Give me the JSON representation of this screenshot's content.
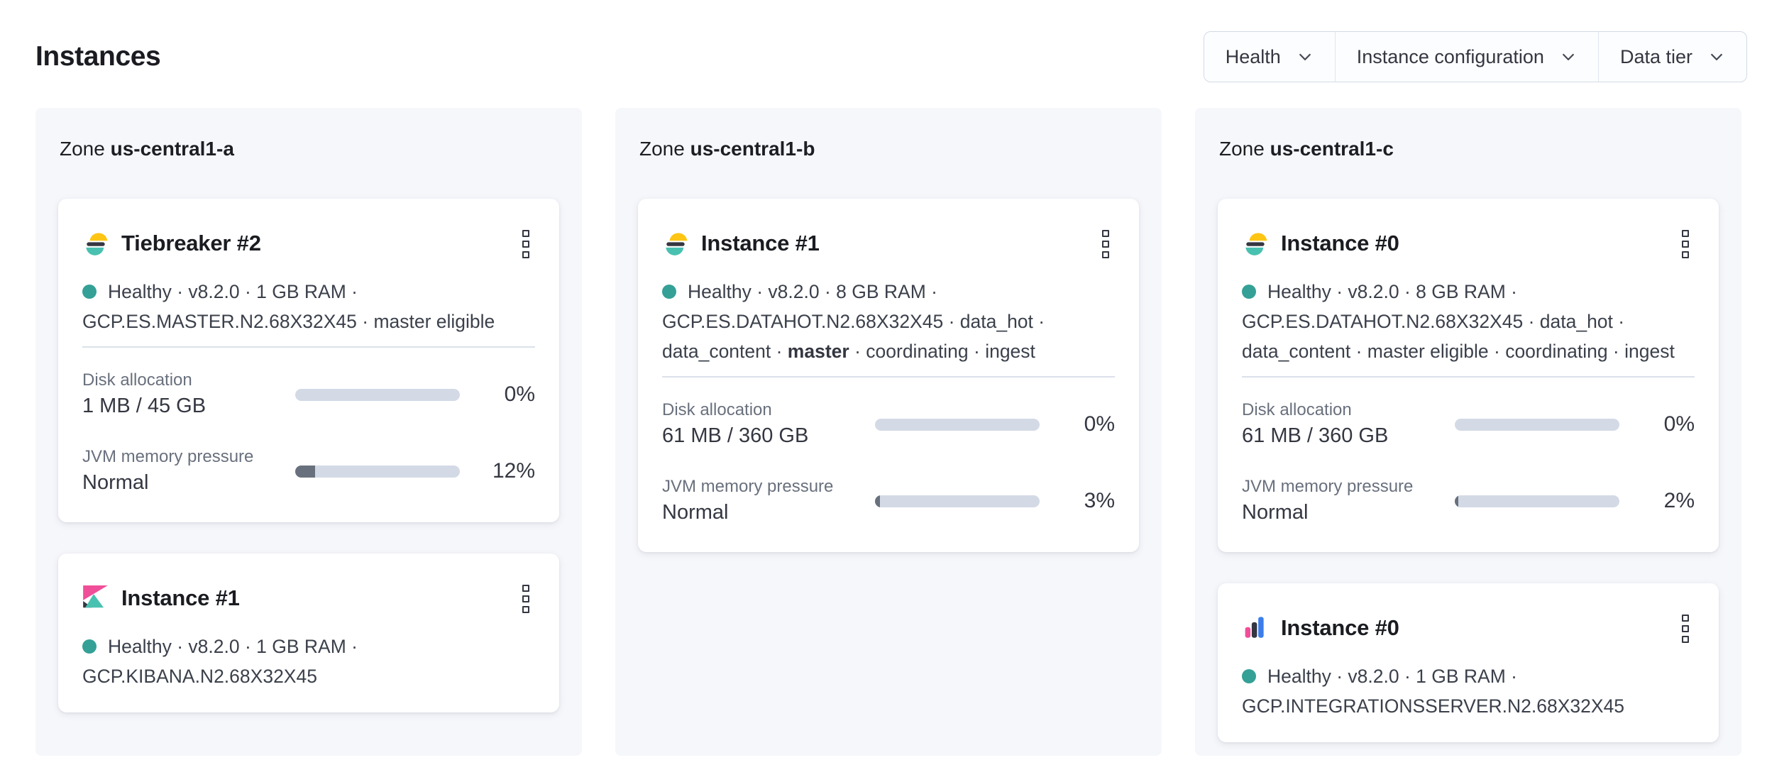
{
  "page": {
    "title": "Instances"
  },
  "filters": {
    "health_label": "Health",
    "instance_configuration_label": "Instance configuration",
    "data_tier_label": "Data tier"
  },
  "colors": {
    "healthy-dot": "#34a096",
    "bar-track": "#d3dae6",
    "bar-fill": "#69707d",
    "panel-bg": "#f6f7fb",
    "brand-yellow": "#fec514",
    "brand-dark": "#343741",
    "brand-teal": "#49c1b1",
    "brand-pink": "#f04e98",
    "brand-blue": "#3c7de9"
  },
  "zones": [
    {
      "zone_word": "Zone",
      "name": "us-central1-a",
      "cards": [
        {
          "logo_icon": "elasticsearch-logo",
          "title": "Tiebreaker #2",
          "health_line": "Healthy · v8.2.0 · 1 GB RAM ·",
          "config_line": "GCP.ES.MASTER.N2.68X32X45 · master eligible",
          "metrics": [
            {
              "label": "Disk allocation",
              "value": "1 MB / 45 GB",
              "percent": 0,
              "percent_label": "0%"
            },
            {
              "label": "JVM memory pressure",
              "value": "Normal",
              "percent": 12,
              "percent_label": "12%"
            }
          ]
        },
        {
          "logo_icon": "kibana-logo",
          "title": "Instance #1",
          "health_line": "Healthy · v8.2.0 · 1 GB RAM ·",
          "config_line": "GCP.KIBANA.N2.68X32X45"
        }
      ]
    },
    {
      "zone_word": "Zone",
      "name": "us-central1-b",
      "cards": [
        {
          "logo_icon": "elasticsearch-logo",
          "title": "Instance #1",
          "health_line": "Healthy · v8.2.0 · 8 GB RAM ·",
          "config_line": "GCP.ES.DATAHOT.N2.68X32X45 · data_hot ·",
          "roles_prefix": "data_content · ",
          "roles_bold": "master",
          "roles_suffix": " · coordinating · ingest",
          "metrics": [
            {
              "label": "Disk allocation",
              "value": "61 MB / 360 GB",
              "percent": 0,
              "percent_label": "0%"
            },
            {
              "label": "JVM memory pressure",
              "value": "Normal",
              "percent": 3,
              "percent_label": "3%"
            }
          ]
        }
      ]
    },
    {
      "zone_word": "Zone",
      "name": "us-central1-c",
      "cards": [
        {
          "logo_icon": "elasticsearch-logo",
          "title": "Instance #0",
          "health_line": "Healthy · v8.2.0 · 8 GB RAM ·",
          "config_line": "GCP.ES.DATAHOT.N2.68X32X45 · data_hot ·",
          "roles_line": "data_content · master eligible · coordinating · ingest",
          "metrics": [
            {
              "label": "Disk allocation",
              "value": "61 MB / 360 GB",
              "percent": 0,
              "percent_label": "0%"
            },
            {
              "label": "JVM memory pressure",
              "value": "Normal",
              "percent": 2,
              "percent_label": "2%"
            }
          ]
        },
        {
          "logo_icon": "integrations-server-logo",
          "title": "Instance #0",
          "health_line": "Healthy · v8.2.0 · 1 GB RAM ·",
          "config_line": "GCP.INTEGRATIONSSERVER.N2.68X32X45"
        }
      ]
    }
  ]
}
